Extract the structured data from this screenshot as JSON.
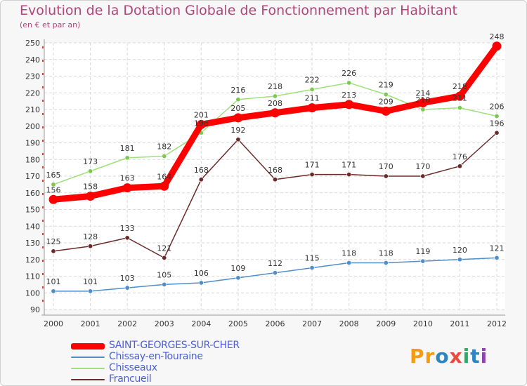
{
  "chart_data": {
    "type": "line",
    "title": "Evolution de la Dotation Globale de Fonctionnement par Habitant",
    "subtitle": "(en € et par an)",
    "xlabel": "",
    "ylabel": "",
    "ylim": [
      90,
      250
    ],
    "yticks": [
      90,
      100,
      110,
      120,
      130,
      140,
      150,
      160,
      170,
      180,
      190,
      200,
      210,
      220,
      230,
      240,
      250
    ],
    "grid": true,
    "categories": [
      "2000",
      "2001",
      "2002",
      "2003",
      "2004",
      "2005",
      "2006",
      "2007",
      "2008",
      "2009",
      "2010",
      "2011",
      "2012"
    ],
    "series": [
      {
        "name": "Chissay-en-Touraine",
        "color": "#4f8fc9",
        "marker": "#4f8fc9",
        "values": [
          101,
          101,
          103,
          105,
          106,
          109,
          112,
          115,
          118,
          118,
          119,
          120,
          121
        ]
      },
      {
        "name": "Chisseaux",
        "color": "#9ee07a",
        "marker": "#7cc94f",
        "values": [
          165,
          173,
          181,
          182,
          196,
          216,
          218,
          222,
          226,
          219,
          210,
          211,
          206
        ]
      },
      {
        "name": "Francueil",
        "color": "#6b2a2a",
        "marker": "#6b2a2a",
        "values": [
          125,
          128,
          133,
          121,
          168,
          192,
          168,
          171,
          171,
          170,
          170,
          176,
          196
        ]
      },
      {
        "name": "SAINT-GEORGES-SUR-CHER",
        "color": "#ff0000",
        "marker": "#ff0000",
        "values": [
          156,
          158,
          163,
          164,
          201,
          205,
          208,
          211,
          213,
          209,
          214,
          218,
          248
        ]
      }
    ],
    "legend_position": "bottom-left",
    "legend_order": [
      "SAINT-GEORGES-SUR-CHER",
      "Chissay-en-Touraine",
      "Chisseaux",
      "Francueil"
    ]
  },
  "logo": {
    "letters": [
      "P",
      "r",
      "o",
      "x",
      "i",
      "t",
      "i"
    ],
    "colors": [
      "#f39c12",
      "#f39c12",
      "#2e86c1",
      "#e74c3c",
      "#27ae60",
      "#2e86c1",
      "#8e44ad"
    ]
  }
}
